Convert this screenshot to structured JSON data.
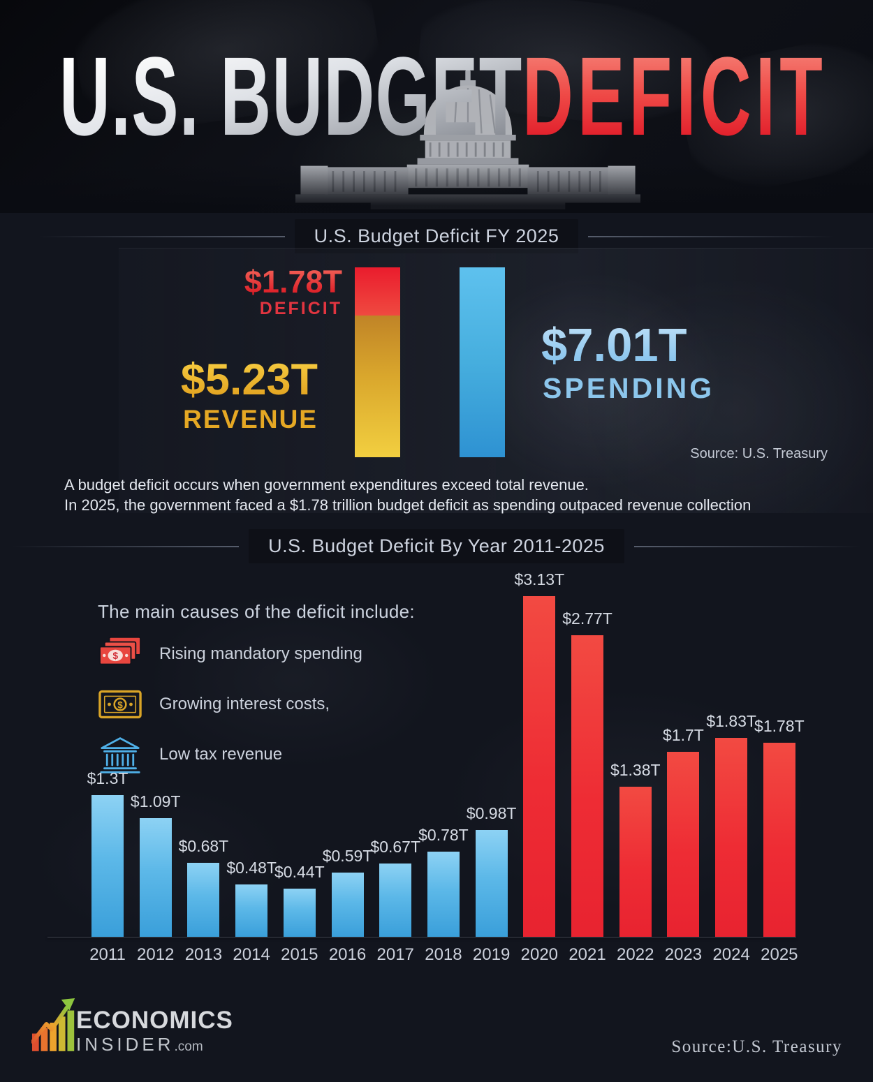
{
  "header": {
    "title_white": "U.S. BUDGET",
    "title_red": "DEFICIT"
  },
  "fy2025": {
    "section_title": "U.S. Budget Deficit FY 2025",
    "deficit": {
      "value": "$1.78T",
      "label": "DEFICIT"
    },
    "revenue": {
      "value": "$5.23T",
      "label": "REVENUE"
    },
    "spending": {
      "value": "$7.01T",
      "label": "SPENDING"
    },
    "source": "Source: U.S. Treasury",
    "description": [
      "A budget deficit occurs when government expenditures exceed total revenue.",
      "In 2025, the government faced a $1.78 trillion budget deficit as spending outpaced revenue collection"
    ]
  },
  "by_year": {
    "section_title": "U.S. Budget Deficit By Year 2011-2025",
    "causes_title": "The main causes of the deficit include:",
    "causes": [
      {
        "icon": "money-stack-icon",
        "label": "Rising mandatory spending"
      },
      {
        "icon": "banknote-icon",
        "label": "Growing interest costs,"
      },
      {
        "icon": "bank-icon",
        "label": "Low tax revenue"
      }
    ]
  },
  "footer": {
    "brand_top": "ECONOMICS",
    "brand_bottom": "INSIDER",
    "brand_suffix": ".com",
    "source": "Source:U.S. Treasury"
  },
  "colors": {
    "deficit_red": "#e8323c",
    "revenue_gold": "#e8a825",
    "spending_blue": "#8cc6ec",
    "bar_blue": "#5cb8e8",
    "bar_red": "#ee2c34"
  },
  "chart_data": [
    {
      "type": "bar",
      "title": "U.S. Budget Deficit FY 2025",
      "unit": "trillion USD",
      "series": [
        {
          "name": "Deficit",
          "value": 1.78,
          "color": "red"
        },
        {
          "name": "Revenue",
          "value": 5.23,
          "color": "gold"
        },
        {
          "name": "Spending",
          "value": 7.01,
          "color": "blue"
        }
      ],
      "note": "Deficit segment stacked on top of Revenue equals total Spending",
      "source": "U.S. Treasury",
      "legend_position": "side-labels"
    },
    {
      "type": "bar",
      "title": "U.S. Budget Deficit By Year 2011-2025",
      "unit": "trillion USD",
      "categories": [
        "2011",
        "2012",
        "2013",
        "2014",
        "2015",
        "2016",
        "2017",
        "2018",
        "2019",
        "2020",
        "2021",
        "2022",
        "2023",
        "2024",
        "2025"
      ],
      "values": [
        1.3,
        1.09,
        0.68,
        0.48,
        0.44,
        0.59,
        0.67,
        0.78,
        0.98,
        3.13,
        2.77,
        1.38,
        1.7,
        1.83,
        1.78
      ],
      "labels": [
        "$1.3T",
        "$1.09T",
        "$0.68T",
        "$0.48T",
        "$0.44T",
        "$0.59T",
        "$0.67T",
        "$0.78T",
        "$0.98T",
        "$3.13T",
        "$2.77T",
        "$1.38T",
        "$1.7T",
        "$1.83T",
        "$1.78T"
      ],
      "bar_colors": [
        "blue",
        "blue",
        "blue",
        "blue",
        "blue",
        "blue",
        "blue",
        "blue",
        "blue",
        "red",
        "red",
        "red",
        "red",
        "red",
        "red"
      ],
      "xlabel": "",
      "ylabel": "",
      "ylim": [
        0,
        3.3
      ],
      "grid": false,
      "source": "U.S. Treasury"
    }
  ]
}
